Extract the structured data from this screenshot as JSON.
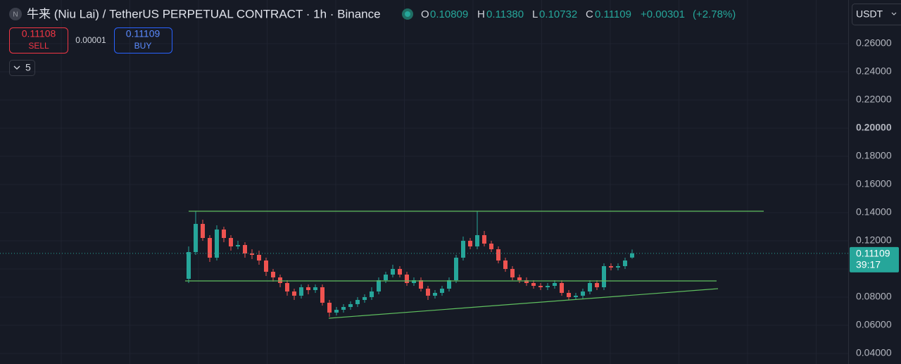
{
  "header": {
    "icon": "N",
    "title": "牛来 (Niu Lai) / TetherUS PERPETUAL CONTRACT · 1h · Binance",
    "ohlc": [
      {
        "key": "O",
        "value": "0.10809"
      },
      {
        "key": "H",
        "value": "0.11380"
      },
      {
        "key": "L",
        "value": "0.10732"
      },
      {
        "key": "C",
        "value": "0.11109"
      }
    ],
    "change": "+0.00301",
    "change_pct": "(+2.78%)",
    "sell_price": "0.11108",
    "sell_label": "SELL",
    "spread": "0.00001",
    "buy_price": "0.11109",
    "buy_label": "BUY",
    "indicators_count": "5",
    "currency": "USDT",
    "countdown": "39:17"
  },
  "chart_data": {
    "type": "candlestick",
    "xlim": [
      -26.8,
      93.7
    ],
    "ylim": [
      0.0325,
      0.291
    ],
    "yticks": [
      {
        "value": 0.04,
        "label": "0.04000"
      },
      {
        "value": 0.06,
        "label": "0.06000"
      },
      {
        "value": 0.08,
        "label": "0.08000"
      },
      {
        "value": 0.1,
        "label": "0.10000"
      },
      {
        "value": 0.12,
        "label": "0.12000"
      },
      {
        "value": 0.14,
        "label": "0.14000"
      },
      {
        "value": 0.16,
        "label": "0.16000"
      },
      {
        "value": 0.18,
        "label": "0.18000"
      },
      {
        "value": 0.2,
        "label": "0.20000"
      },
      {
        "value": 0.22,
        "label": "0.22000"
      },
      {
        "value": 0.24,
        "label": "0.24000"
      },
      {
        "value": 0.26,
        "label": "0.26000"
      }
    ],
    "grid": true,
    "up_color": "#26a69a",
    "down_color": "#ef5350",
    "last_price": 0.11109,
    "open": [
      0.093,
      0.112,
      0.132,
      0.122,
      0.108,
      0.128,
      0.122,
      0.116,
      0.117,
      0.111,
      0.11,
      0.106,
      0.098,
      0.094,
      0.09,
      0.084,
      0.081,
      0.087,
      0.085,
      0.087,
      0.076,
      0.069,
      0.071,
      0.073,
      0.075,
      0.078,
      0.08,
      0.084,
      0.092,
      0.096,
      0.1,
      0.096,
      0.09,
      0.092,
      0.086,
      0.081,
      0.083,
      0.086,
      0.092,
      0.108,
      0.12,
      0.116,
      0.124,
      0.118,
      0.114,
      0.106,
      0.1,
      0.094,
      0.092,
      0.09,
      0.088,
      0.087,
      0.088,
      0.09,
      0.083,
      0.08,
      0.081,
      0.084,
      0.09,
      0.087,
      0.102,
      0.101,
      0.102,
      0.10809
    ],
    "high": [
      0.116,
      0.141,
      0.135,
      0.124,
      0.131,
      0.13,
      0.124,
      0.12,
      0.119,
      0.114,
      0.113,
      0.108,
      0.1,
      0.096,
      0.092,
      0.086,
      0.089,
      0.089,
      0.089,
      0.089,
      0.078,
      0.073,
      0.075,
      0.077,
      0.08,
      0.082,
      0.087,
      0.094,
      0.098,
      0.103,
      0.102,
      0.098,
      0.094,
      0.094,
      0.088,
      0.085,
      0.088,
      0.094,
      0.11,
      0.123,
      0.122,
      0.141,
      0.127,
      0.12,
      0.116,
      0.108,
      0.102,
      0.096,
      0.094,
      0.092,
      0.09,
      0.09,
      0.092,
      0.092,
      0.085,
      0.083,
      0.086,
      0.092,
      0.092,
      0.104,
      0.104,
      0.104,
      0.108,
      0.1138
    ],
    "low": [
      0.09,
      0.11,
      0.12,
      0.105,
      0.106,
      0.119,
      0.113,
      0.114,
      0.108,
      0.107,
      0.103,
      0.095,
      0.091,
      0.087,
      0.081,
      0.078,
      0.079,
      0.082,
      0.083,
      0.074,
      0.066,
      0.067,
      0.069,
      0.071,
      0.073,
      0.076,
      0.078,
      0.082,
      0.09,
      0.094,
      0.094,
      0.088,
      0.088,
      0.084,
      0.078,
      0.079,
      0.081,
      0.084,
      0.09,
      0.106,
      0.114,
      0.114,
      0.116,
      0.112,
      0.104,
      0.098,
      0.092,
      0.09,
      0.088,
      0.086,
      0.085,
      0.085,
      0.086,
      0.081,
      0.078,
      0.078,
      0.079,
      0.082,
      0.085,
      0.085,
      0.099,
      0.099,
      0.1,
      0.10732
    ],
    "close": [
      0.112,
      0.132,
      0.122,
      0.108,
      0.128,
      0.122,
      0.116,
      0.117,
      0.111,
      0.11,
      0.106,
      0.098,
      0.094,
      0.09,
      0.084,
      0.081,
      0.087,
      0.085,
      0.087,
      0.076,
      0.069,
      0.071,
      0.073,
      0.075,
      0.078,
      0.08,
      0.084,
      0.092,
      0.096,
      0.1,
      0.096,
      0.09,
      0.092,
      0.086,
      0.081,
      0.083,
      0.086,
      0.092,
      0.108,
      0.12,
      0.116,
      0.124,
      0.118,
      0.114,
      0.106,
      0.1,
      0.094,
      0.092,
      0.09,
      0.088,
      0.087,
      0.088,
      0.09,
      0.083,
      0.08,
      0.081,
      0.084,
      0.09,
      0.087,
      0.102,
      0.101,
      0.102,
      0.106,
      0.11109
    ],
    "lines": [
      {
        "color": "#5fbf5f",
        "x": [
          0,
          81.7
        ],
        "y": [
          0.141,
          0.141
        ]
      },
      {
        "color": "#5fbf5f",
        "x": [
          -0.5,
          75
        ],
        "y": [
          0.0915,
          0.0915
        ]
      },
      {
        "color": "#5fbf5f",
        "x": [
          19.9,
          75.2
        ],
        "y": [
          0.065,
          0.086
        ]
      }
    ]
  }
}
